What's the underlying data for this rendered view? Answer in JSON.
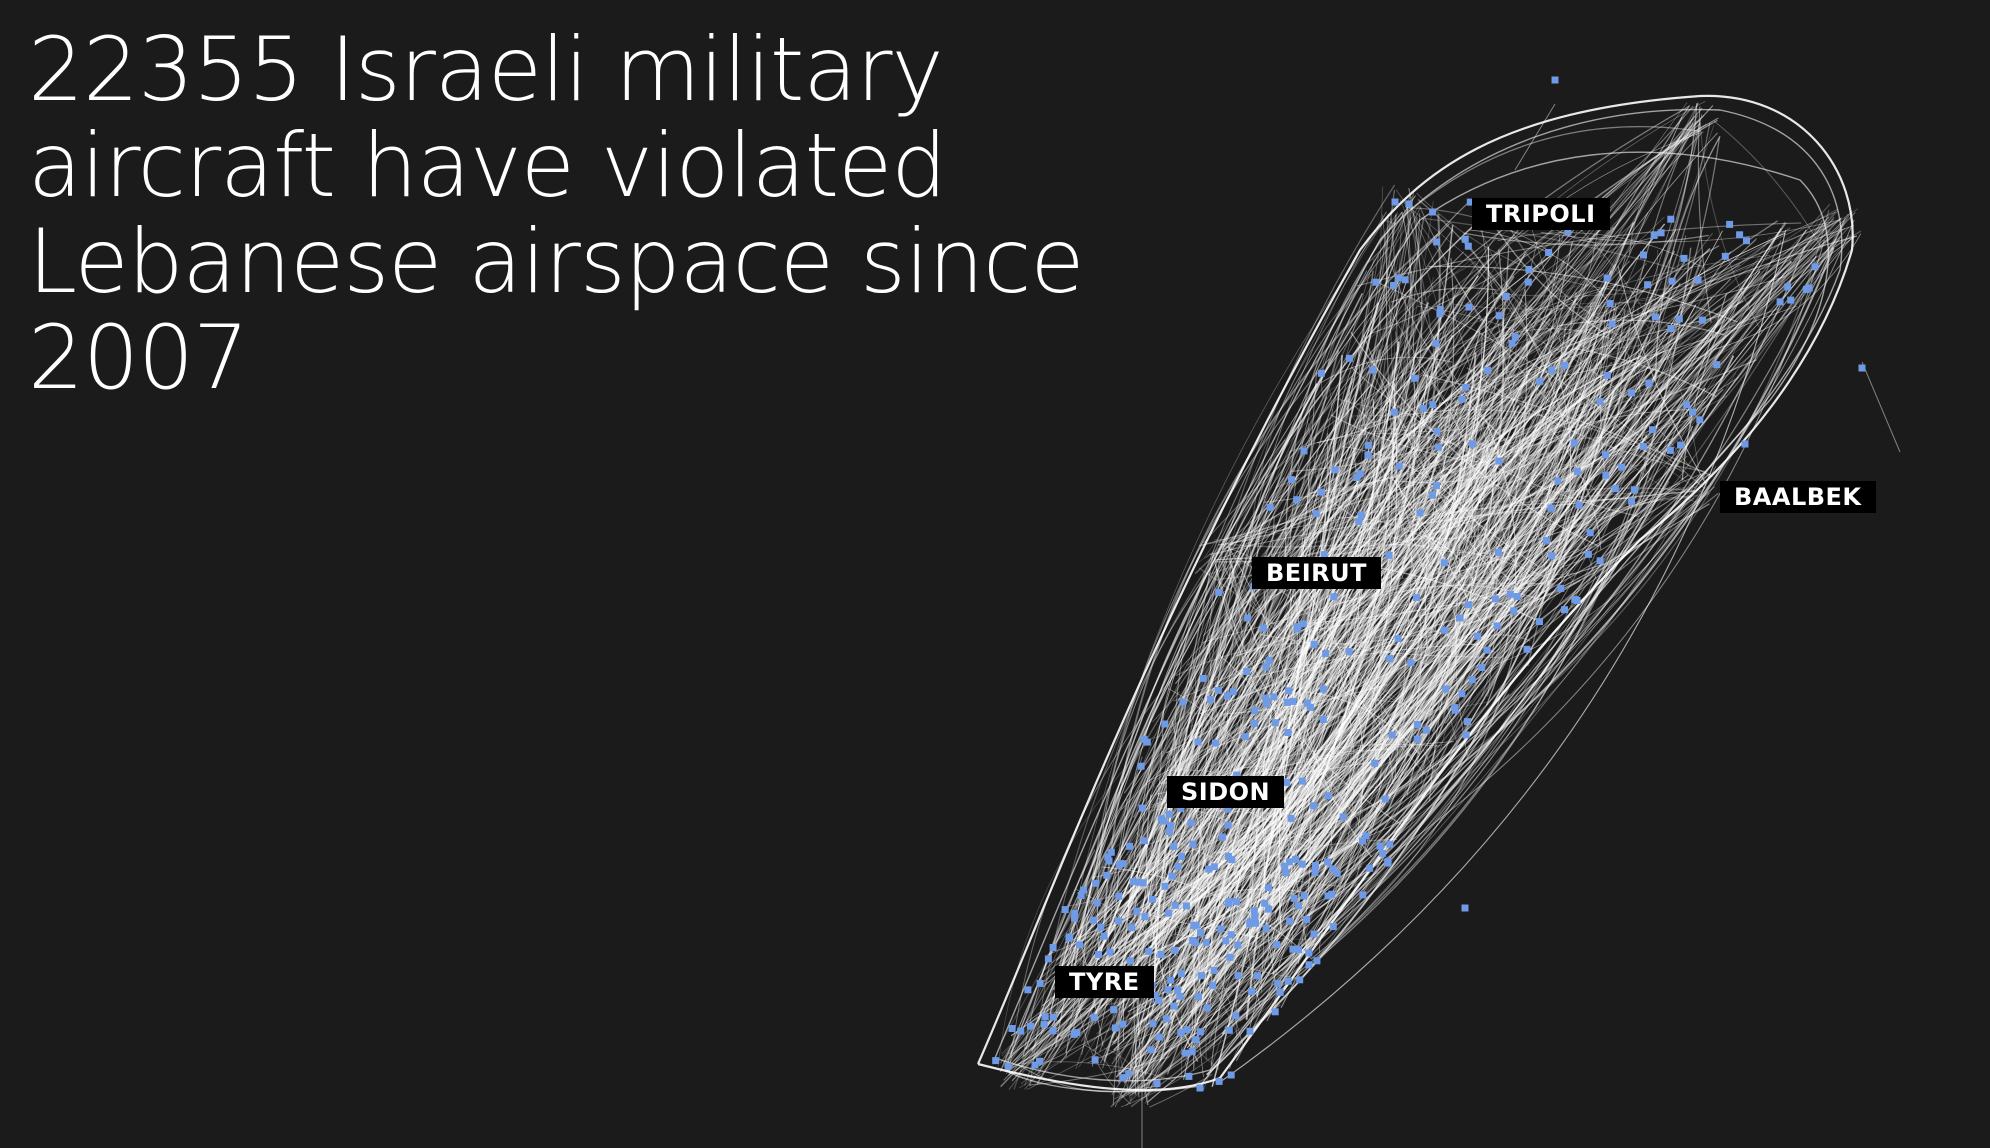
{
  "headline": "22355 Israeli military aircraft have violated Lebanese airspace since 2007",
  "cities": {
    "tripoli": "TRIPOLI",
    "baalbek": "BAALBEK",
    "beirut": "BEIRUT",
    "sidon": "SIDON",
    "tyre": "TYRE"
  },
  "colors": {
    "background": "#1b1b1b",
    "flight_path": "#ffffff",
    "violation_point": "#6f9ae6",
    "label_background": "#000000",
    "text": "#ffffff"
  }
}
